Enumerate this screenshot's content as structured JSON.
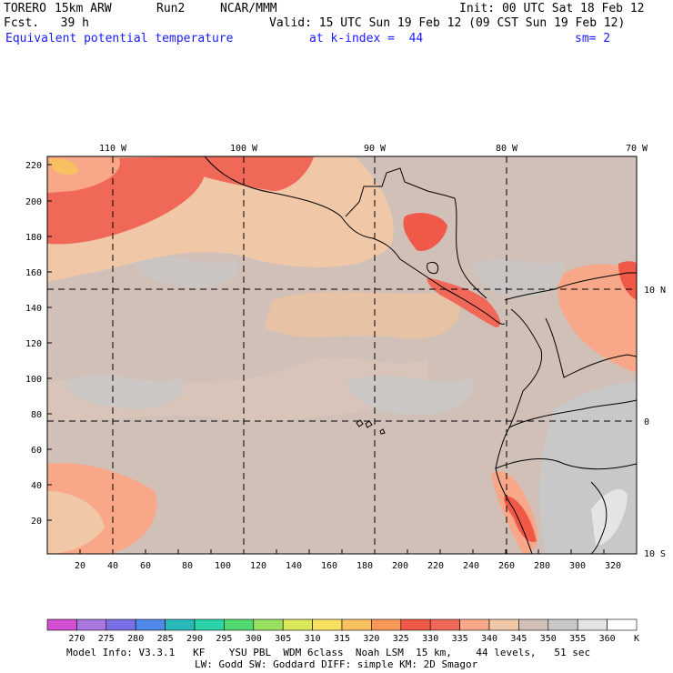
{
  "header": {
    "model": "TORERO",
    "resolution": "15km ARW",
    "run": "Run2",
    "org": "NCAR/MMM",
    "init": "Init: 00 UTC Sat 18 Feb 12",
    "fcst": "Fcst.   39 h",
    "valid": "Valid: 15 UTC Sun 19 Feb 12 (09 CST Sun 19 Feb 12)",
    "field": "Equivalent potential temperature",
    "level": "at k-index =  44",
    "smoothing": "sm= 2"
  },
  "top_longitude_labels": [
    "110 W",
    "100 W",
    "90 W",
    "80 W",
    "70 W"
  ],
  "right_latitude_labels": [
    "10 N",
    "0",
    "10 S"
  ],
  "left_y_ticks": [
    "220",
    "200",
    "180",
    "160",
    "140",
    "120",
    "100",
    "80",
    "60",
    "40",
    "20"
  ],
  "bottom_x_ticks": [
    "20",
    "40",
    "60",
    "80",
    "100",
    "120",
    "140",
    "160",
    "180",
    "200",
    "220",
    "240",
    "260",
    "280",
    "300",
    "320"
  ],
  "colorbar": {
    "labels": [
      "270",
      "275",
      "280",
      "285",
      "290",
      "295",
      "300",
      "305",
      "310",
      "315",
      "320",
      "325",
      "330",
      "335",
      "340",
      "345",
      "350",
      "355",
      "360"
    ],
    "unit": "K",
    "colors": [
      "#d24fd2",
      "#a878e0",
      "#7b6fe8",
      "#4f8ae8",
      "#2bb8b8",
      "#2ad4a8",
      "#52d870",
      "#9ae060",
      "#d8e858",
      "#f8e060",
      "#f8c060",
      "#f89858",
      "#f05848",
      "#f06858",
      "#f8a888",
      "#f0c8a8",
      "#d0c0b8",
      "#c8c8c8",
      "#e4e4e4",
      "#ffffff"
    ]
  },
  "footer": {
    "line1": "Model Info: V3.3.1   KF    YSU PBL  WDM 6class  Noah LSM  15 km,    44 levels,   51 sec",
    "line2": "LW: Godd SW: Goddard DIFF: simple KM: 2D Smagor"
  }
}
